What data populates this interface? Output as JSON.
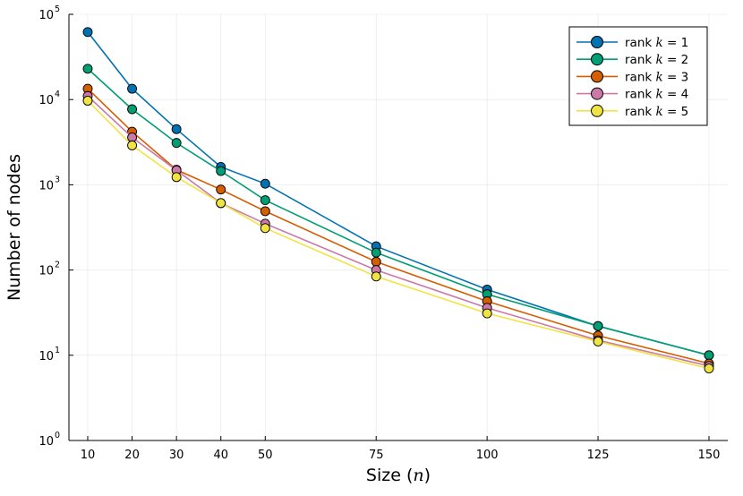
{
  "chart_data": {
    "type": "line",
    "title": "",
    "xlabel_prefix": "Size (",
    "xlabel_var": "n",
    "xlabel_suffix": ")",
    "ylabel": "Number of nodes",
    "yscale": "log",
    "ylim": [
      1,
      100000
    ],
    "x_ticks": [
      10,
      20,
      30,
      40,
      50,
      75,
      100,
      125,
      150
    ],
    "x_tick_labels": [
      "10",
      "20",
      "30",
      "40",
      "50",
      "75",
      "100",
      "125",
      "150"
    ],
    "y_ticks": [
      1,
      10,
      100,
      1000,
      10000,
      100000
    ],
    "y_tick_labels": [
      {
        "base": "10",
        "exp": "0"
      },
      {
        "base": "10",
        "exp": "1"
      },
      {
        "base": "10",
        "exp": "2"
      },
      {
        "base": "10",
        "exp": "3"
      },
      {
        "base": "10",
        "exp": "4"
      },
      {
        "base": "10",
        "exp": "5"
      }
    ],
    "grid": true,
    "legend_position": "top-right",
    "x": [
      10,
      20,
      30,
      40,
      50,
      75,
      100,
      125,
      150
    ],
    "series": [
      {
        "name": "rank k = 1",
        "prefix": "rank ",
        "var": "k",
        "rel": " = 1",
        "color": "#0072B2",
        "values": [
          62000,
          13400,
          4500,
          1620,
          1030,
          190,
          59,
          22,
          10
        ]
      },
      {
        "name": "rank k = 2",
        "prefix": "rank ",
        "var": "k",
        "rel": " = 2",
        "color": "#009E73",
        "values": [
          23000,
          7700,
          3100,
          1450,
          660,
          160,
          52,
          22,
          10
        ]
      },
      {
        "name": "rank k = 3",
        "prefix": "rank ",
        "var": "k",
        "rel": " = 3",
        "color": "#D55E00",
        "values": [
          13400,
          4200,
          1500,
          880,
          490,
          125,
          43,
          17,
          8
        ]
      },
      {
        "name": "rank k = 4",
        "prefix": "rank ",
        "var": "k",
        "rel": " = 4",
        "color": "#CC79A7",
        "values": [
          11000,
          3600,
          1480,
          610,
          350,
          100,
          36,
          15,
          7.5
        ]
      },
      {
        "name": "rank k = 5",
        "prefix": "rank ",
        "var": "k",
        "rel": " = 5",
        "color": "#F0E442",
        "values": [
          9700,
          2900,
          1230,
          610,
          310,
          84,
          31,
          14.5,
          7
        ]
      }
    ]
  }
}
